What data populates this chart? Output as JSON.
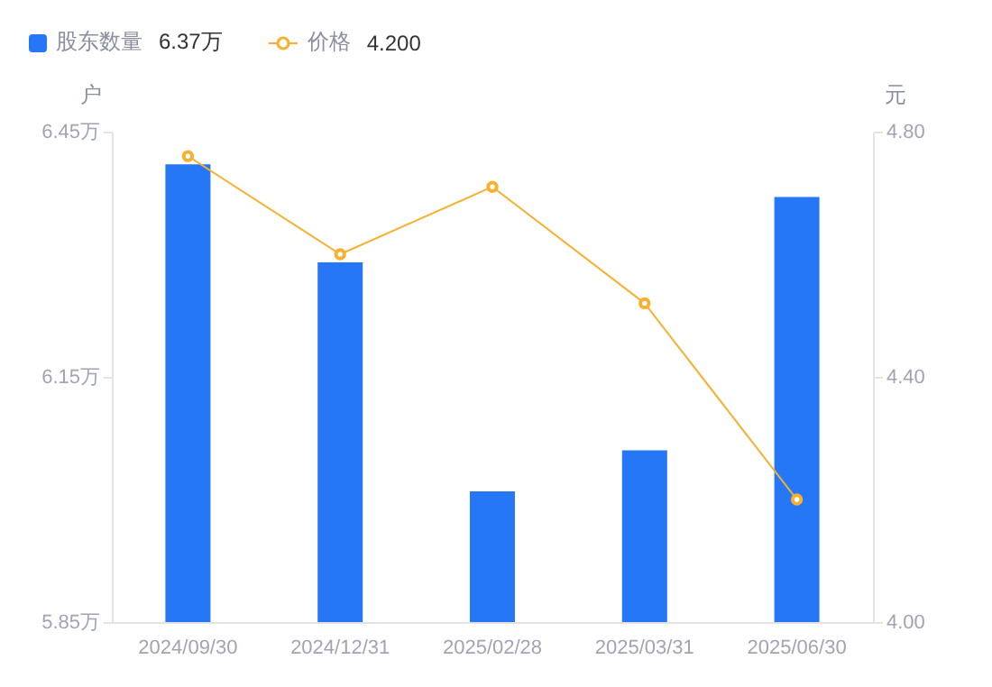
{
  "chart_data": {
    "type": "bar",
    "categories": [
      "2024/09/30",
      "2024/12/31",
      "2025/02/28",
      "2025/03/31",
      "2025/06/30"
    ],
    "ylabel": "户",
    "y2label": "元",
    "series": [
      {
        "name": "股东数量",
        "color": "#2677f5",
        "values": [
          6.41,
          6.29,
          6.01,
          6.06,
          6.37
        ]
      },
      {
        "name": "价格",
        "type": "line",
        "axis": "y2",
        "color": "#f7b030",
        "values": [
          4.76,
          4.6,
          4.71,
          4.52,
          4.2
        ]
      }
    ],
    "annotations": [
      "6.37万",
      "4.200"
    ],
    "ylim": [
      5.85,
      6.45
    ],
    "yticks": [
      {
        "value": 5.85,
        "label": "5.85万"
      },
      {
        "value": 6.15,
        "label": "6.15万"
      },
      {
        "value": 6.45,
        "label": "6.45万"
      }
    ],
    "y2lim": [
      4.0,
      4.8
    ],
    "y2ticks": [
      {
        "value": 4.0,
        "label": "4.00"
      },
      {
        "value": 4.4,
        "label": "4.40"
      },
      {
        "value": 4.8,
        "label": "4.80"
      }
    ],
    "legend": "top left",
    "marker": "circle",
    "line_style": "solid",
    "grid": false
  }
}
